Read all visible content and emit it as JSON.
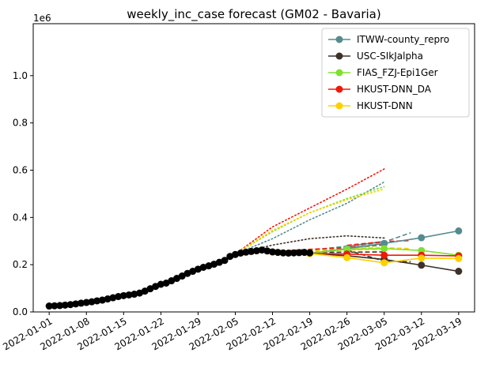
{
  "chart_data": {
    "type": "line",
    "title": "weekly_inc_case forecast (GM02 - Bavaria)",
    "xlabel": "",
    "ylabel": "",
    "y_exponent_label": "1e6",
    "y_scale_factor": 1000000,
    "xlim": [
      "2021-12-29",
      "2022-03-22"
    ],
    "ylim": [
      0,
      1.22
    ],
    "yticks": [
      0.0,
      0.2,
      0.4,
      0.6,
      0.8,
      1.0
    ],
    "ytick_labels": [
      "0.0",
      "0.2",
      "0.4",
      "0.6",
      "0.8",
      "1.0"
    ],
    "xticks": [
      "2022-01-01",
      "2022-01-08",
      "2022-01-15",
      "2022-01-22",
      "2022-01-29",
      "2022-02-05",
      "2022-02-12",
      "2022-02-19",
      "2022-02-26",
      "2022-03-05",
      "2022-03-12",
      "2022-03-19"
    ],
    "grid": false,
    "legend_position": "upper-right",
    "observed": {
      "color": "#000000",
      "points": [
        [
          "2022-01-01",
          0.025
        ],
        [
          "2022-01-02",
          0.026
        ],
        [
          "2022-01-03",
          0.027
        ],
        [
          "2022-01-04",
          0.029
        ],
        [
          "2022-01-05",
          0.031
        ],
        [
          "2022-01-06",
          0.034
        ],
        [
          "2022-01-07",
          0.037
        ],
        [
          "2022-01-08",
          0.04
        ],
        [
          "2022-01-09",
          0.043
        ],
        [
          "2022-01-10",
          0.047
        ],
        [
          "2022-01-11",
          0.05
        ],
        [
          "2022-01-12",
          0.055
        ],
        [
          "2022-01-13",
          0.06
        ],
        [
          "2022-01-14",
          0.065
        ],
        [
          "2022-01-15",
          0.069
        ],
        [
          "2022-01-16",
          0.072
        ],
        [
          "2022-01-17",
          0.075
        ],
        [
          "2022-01-18",
          0.08
        ],
        [
          "2022-01-19",
          0.088
        ],
        [
          "2022-01-20",
          0.098
        ],
        [
          "2022-01-21",
          0.108
        ],
        [
          "2022-01-22",
          0.117
        ],
        [
          "2022-01-23",
          0.122
        ],
        [
          "2022-01-24",
          0.132
        ],
        [
          "2022-01-25",
          0.142
        ],
        [
          "2022-01-26",
          0.152
        ],
        [
          "2022-01-27",
          0.163
        ],
        [
          "2022-01-28",
          0.172
        ],
        [
          "2022-01-29",
          0.181
        ],
        [
          "2022-01-30",
          0.189
        ],
        [
          "2022-01-31",
          0.195
        ],
        [
          "2022-02-01",
          0.202
        ],
        [
          "2022-02-02",
          0.21
        ],
        [
          "2022-02-03",
          0.218
        ],
        [
          "2022-02-04",
          0.235
        ],
        [
          "2022-02-05",
          0.243
        ],
        [
          "2022-02-06",
          0.249
        ],
        [
          "2022-02-07",
          0.253
        ],
        [
          "2022-02-08",
          0.256
        ],
        [
          "2022-02-09",
          0.259
        ],
        [
          "2022-02-10",
          0.262
        ],
        [
          "2022-02-11",
          0.258
        ],
        [
          "2022-02-12",
          0.254
        ],
        [
          "2022-02-13",
          0.252
        ],
        [
          "2022-02-14",
          0.25
        ],
        [
          "2022-02-15",
          0.249
        ],
        [
          "2022-02-16",
          0.25
        ],
        [
          "2022-02-17",
          0.251
        ],
        [
          "2022-02-18",
          0.252
        ],
        [
          "2022-02-19",
          0.25
        ]
      ]
    },
    "series": [
      {
        "name": "ITWW-county_repro",
        "color": "#558b8f",
        "points": [
          [
            "2022-02-19",
            0.248
          ],
          [
            "2022-02-26",
            0.268
          ],
          [
            "2022-03-05",
            0.29
          ],
          [
            "2022-03-12",
            0.314
          ],
          [
            "2022-03-19",
            0.343
          ]
        ],
        "dashed_paths": [
          [
            [
              "2022-02-12",
              0.25
            ],
            [
              "2022-02-19",
              0.262
            ],
            [
              "2022-02-26",
              0.278
            ],
            [
              "2022-03-05",
              0.298
            ]
          ],
          [
            [
              "2022-02-26",
              0.275
            ],
            [
              "2022-03-05",
              0.296
            ],
            [
              "2022-03-10",
              0.335
            ]
          ]
        ],
        "dotted_paths": [
          [
            [
              "2022-02-05",
              0.245
            ],
            [
              "2022-02-12",
              0.31
            ],
            [
              "2022-02-19",
              0.39
            ],
            [
              "2022-02-26",
              0.46
            ],
            [
              "2022-03-05",
              0.55
            ]
          ]
        ]
      },
      {
        "name": "USC-SIkJalpha",
        "color": "#3e3128",
        "points": [
          [
            "2022-02-19",
            0.247
          ],
          [
            "2022-02-26",
            0.238
          ],
          [
            "2022-03-05",
            0.222
          ],
          [
            "2022-03-12",
            0.198
          ],
          [
            "2022-03-19",
            0.172
          ]
        ],
        "dashed_paths": [
          [
            [
              "2022-02-12",
              0.25
            ],
            [
              "2022-02-19",
              0.252
            ],
            [
              "2022-02-26",
              0.253
            ],
            [
              "2022-03-05",
              0.254
            ]
          ],
          [
            [
              "2022-02-26",
              0.262
            ],
            [
              "2022-03-05",
              0.215
            ],
            [
              "2022-03-10",
              0.212
            ]
          ]
        ],
        "dotted_paths": [
          [
            [
              "2022-02-05",
              0.245
            ],
            [
              "2022-02-12",
              0.283
            ],
            [
              "2022-02-19",
              0.31
            ],
            [
              "2022-02-26",
              0.322
            ],
            [
              "2022-03-05",
              0.313
            ]
          ]
        ]
      },
      {
        "name": "FIAS_FZJ-Epi1Ger",
        "color": "#80e030",
        "points": [
          [
            "2022-02-19",
            0.248
          ],
          [
            "2022-02-26",
            0.265
          ],
          [
            "2022-03-05",
            0.268
          ],
          [
            "2022-03-12",
            0.26
          ],
          [
            "2022-03-19",
            0.24
          ]
        ],
        "dashed_paths": [
          [
            [
              "2022-02-12",
              0.25
            ],
            [
              "2022-02-19",
              0.258
            ],
            [
              "2022-02-26",
              0.27
            ],
            [
              "2022-03-05",
              0.282
            ]
          ],
          [
            [
              "2022-02-26",
              0.265
            ],
            [
              "2022-03-05",
              0.27
            ],
            [
              "2022-03-10",
              0.268
            ]
          ]
        ],
        "dotted_paths": [
          [
            [
              "2022-02-05",
              0.245
            ],
            [
              "2022-02-12",
              0.34
            ],
            [
              "2022-02-19",
              0.42
            ],
            [
              "2022-02-26",
              0.48
            ],
            [
              "2022-03-05",
              0.53
            ]
          ]
        ]
      },
      {
        "name": "HKUST-DNN_DA",
        "color": "#f0180a",
        "points": [
          [
            "2022-02-19",
            0.248
          ],
          [
            "2022-02-26",
            0.245
          ],
          [
            "2022-03-05",
            0.24
          ],
          [
            "2022-03-12",
            0.24
          ],
          [
            "2022-03-19",
            0.237
          ]
        ],
        "dashed_paths": [
          [
            [
              "2022-02-12",
              0.256
            ],
            [
              "2022-02-19",
              0.265
            ],
            [
              "2022-02-26",
              0.272
            ],
            [
              "2022-03-05",
              0.285
            ]
          ],
          [
            [
              "2022-02-26",
              0.282
            ],
            [
              "2022-03-05",
              0.298
            ],
            [
              "2022-03-10",
              0.302
            ]
          ]
        ],
        "dotted_paths": [
          [
            [
              "2022-02-05",
              0.245
            ],
            [
              "2022-02-12",
              0.36
            ],
            [
              "2022-02-19",
              0.44
            ],
            [
              "2022-02-26",
              0.52
            ],
            [
              "2022-03-05",
              0.605
            ]
          ]
        ]
      },
      {
        "name": "HKUST-DNN",
        "color": "#ffd000",
        "points": [
          [
            "2022-02-19",
            0.247
          ],
          [
            "2022-02-26",
            0.23
          ],
          [
            "2022-03-05",
            0.208
          ],
          [
            "2022-03-12",
            0.228
          ],
          [
            "2022-03-19",
            0.226
          ]
        ],
        "dashed_paths": [
          [
            [
              "2022-02-12",
              0.253
            ],
            [
              "2022-02-19",
              0.258
            ],
            [
              "2022-02-26",
              0.262
            ],
            [
              "2022-03-05",
              0.266
            ]
          ],
          [
            [
              "2022-02-26",
              0.27
            ],
            [
              "2022-03-05",
              0.272
            ],
            [
              "2022-03-10",
              0.268
            ]
          ]
        ],
        "dotted_paths": [
          [
            [
              "2022-02-05",
              0.245
            ],
            [
              "2022-02-12",
              0.345
            ],
            [
              "2022-02-19",
              0.42
            ],
            [
              "2022-02-26",
              0.475
            ],
            [
              "2022-03-05",
              0.52
            ]
          ]
        ]
      }
    ]
  }
}
